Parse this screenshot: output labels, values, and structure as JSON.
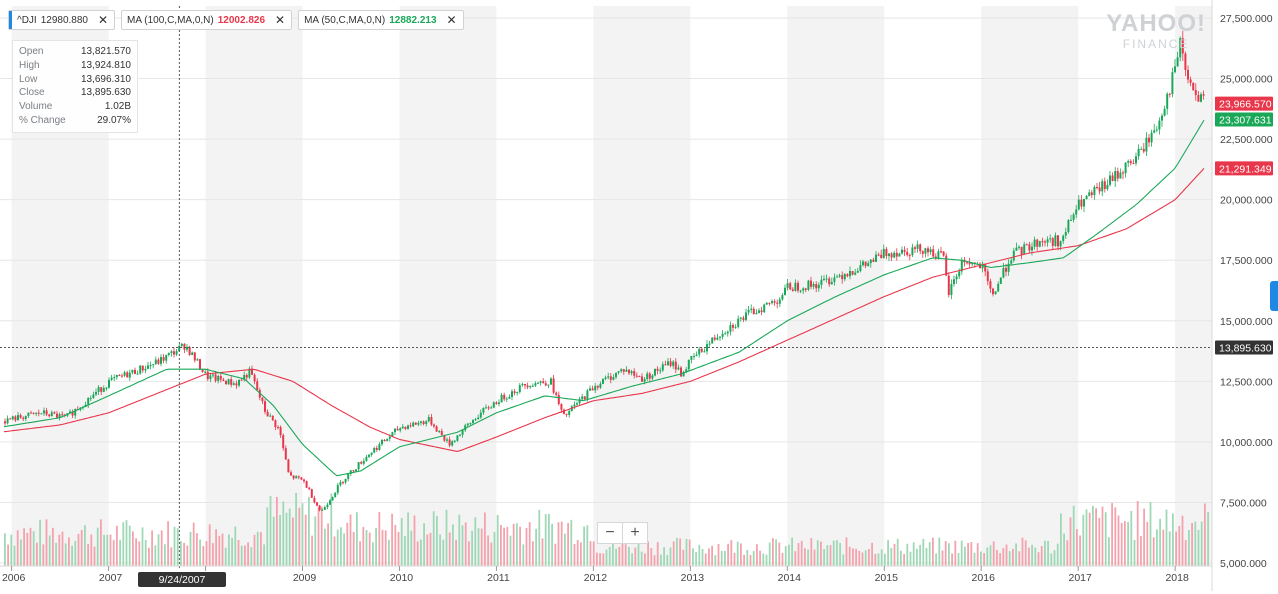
{
  "legend": {
    "symbol": {
      "name": "^DJI",
      "value": "12980.880",
      "color": "#1e88e5"
    },
    "ma100": {
      "name": "MA (100,C,MA,0,N)",
      "value": "12002.826",
      "color": "#e8364a"
    },
    "ma50": {
      "name": "MA (50,C,MA,0,N)",
      "value": "12882.213",
      "color": "#1aa858"
    },
    "close_glyph": "✕"
  },
  "ohlc": [
    {
      "label": "Open",
      "value": "13,821.570"
    },
    {
      "label": "High",
      "value": "13,924.810"
    },
    {
      "label": "Low",
      "value": "13,696.310"
    },
    {
      "label": "Close",
      "value": "13,895.630"
    },
    {
      "label": "Volume",
      "value": "1.02B"
    },
    {
      "label": "% Change",
      "value": "29.07%"
    }
  ],
  "watermark": {
    "line1": "YAHOO!",
    "line2": "FINANCE"
  },
  "zoom": {
    "out": "−",
    "in": "+"
  },
  "crosshair": {
    "date": "9/24/2007",
    "price": 13895.63,
    "price_label": "13,895.630"
  },
  "price_labels": [
    {
      "text": "23,966.570",
      "value": 23966.57,
      "color": "#e8364a"
    },
    {
      "text": "23,307.631",
      "value": 23307.631,
      "color": "#1aa858"
    },
    {
      "text": "21,291.349",
      "value": 21291.349,
      "color": "#e8364a"
    }
  ],
  "colors": {
    "up": "#1aa858",
    "down": "#e8364a",
    "ma50": "#1aa858",
    "ma100": "#e8364a",
    "accent": "#1e88e5"
  },
  "chart_data": {
    "type": "candlestick",
    "title": "",
    "xlabel": "",
    "ylabel": "",
    "ylim": [
      5000000,
      28000000
    ],
    "y_ticks": [
      "27,500.000",
      "25,000.000",
      "22,500.000",
      "20,000.000",
      "17,500.000",
      "15,000.000",
      "12,500.000",
      "10,000.000",
      "7,500.000",
      "5,000.000"
    ],
    "y_tick_values": [
      27500,
      25000,
      22500,
      20000,
      17500,
      15000,
      12500,
      10000,
      7500,
      5000
    ],
    "x_ticks": [
      "2006",
      "2007",
      "2008",
      "2009",
      "2010",
      "2011",
      "2012",
      "2013",
      "2014",
      "2015",
      "2016",
      "2017",
      "2018"
    ],
    "x_tick_years": [
      2006,
      2007,
      2008,
      2009,
      2010,
      2011,
      2012,
      2013,
      2014,
      2015,
      2016,
      2017,
      2018
    ],
    "x_range": [
      2005.88,
      2018.38
    ],
    "close_path_years": [
      2005.88,
      2006.3,
      2006.55,
      2007.0,
      2007.5,
      2007.78,
      2008.0,
      2008.3,
      2008.45,
      2008.6,
      2008.75,
      2008.85,
      2009.0,
      2009.18,
      2009.4,
      2009.7,
      2010.0,
      2010.3,
      2010.5,
      2010.8,
      2011.0,
      2011.3,
      2011.55,
      2011.68,
      2011.8,
      2012.0,
      2012.3,
      2012.5,
      2012.8,
      2012.9,
      2013.0,
      2013.3,
      2013.6,
      2013.9,
      2014.0,
      2014.3,
      2014.6,
      2014.8,
      2015.0,
      2015.4,
      2015.6,
      2015.65,
      2015.8,
      2016.0,
      2016.1,
      2016.3,
      2016.6,
      2016.83,
      2016.9,
      2017.0,
      2017.3,
      2017.6,
      2017.8,
      2017.95,
      2018.05,
      2018.1,
      2018.2,
      2018.3
    ],
    "close_path_values": [
      10850,
      11200,
      11000,
      12500,
      13300,
      14000,
      12700,
      12400,
      12900,
      11300,
      10500,
      8600,
      8400,
      7100,
      8400,
      9600,
      10600,
      10900,
      9900,
      11100,
      11700,
      12400,
      12500,
      11000,
      11500,
      12300,
      13000,
      12600,
      13300,
      12800,
      13400,
      14500,
      15300,
      15900,
      16400,
      16500,
      17000,
      17300,
      17800,
      18000,
      17600,
      16100,
      17500,
      17200,
      16000,
      17700,
      18300,
      18300,
      19100,
      19800,
      20700,
      21800,
      23000,
      24800,
      26500,
      25200,
      24200,
      24000
    ],
    "ma50_years": [
      2005.88,
      2006.5,
      2007.0,
      2007.6,
      2008.0,
      2008.4,
      2008.7,
      2009.0,
      2009.35,
      2009.6,
      2010.0,
      2010.6,
      2011.0,
      2011.5,
      2011.9,
      2012.4,
      2012.9,
      2013.5,
      2014.0,
      2014.5,
      2015.0,
      2015.5,
      2015.8,
      2016.1,
      2016.5,
      2016.85,
      2017.2,
      2017.6,
      2018.0,
      2018.3
    ],
    "ma50_values": [
      10600,
      11000,
      11900,
      13000,
      13000,
      12600,
      11500,
      9900,
      8600,
      8800,
      9800,
      10400,
      11200,
      11900,
      11700,
      12300,
      12800,
      13700,
      15000,
      16000,
      16900,
      17600,
      17500,
      17200,
      17400,
      17600,
      18600,
      19800,
      21300,
      23300
    ],
    "ma100_years": [
      2005.88,
      2006.5,
      2007.0,
      2007.5,
      2008.0,
      2008.5,
      2008.9,
      2009.3,
      2009.7,
      2010.0,
      2010.6,
      2011.0,
      2011.5,
      2012.0,
      2012.5,
      2013.0,
      2013.5,
      2014.0,
      2014.5,
      2015.0,
      2015.5,
      2016.0,
      2016.5,
      2017.0,
      2017.5,
      2018.0,
      2018.3
    ],
    "ma100_values": [
      10400,
      10700,
      11200,
      12000,
      12800,
      13000,
      12500,
      11500,
      10600,
      10100,
      9600,
      10200,
      11000,
      11700,
      12000,
      12500,
      13300,
      14200,
      15100,
      16000,
      16800,
      17300,
      17800,
      18100,
      18800,
      20000,
      21300
    ]
  }
}
